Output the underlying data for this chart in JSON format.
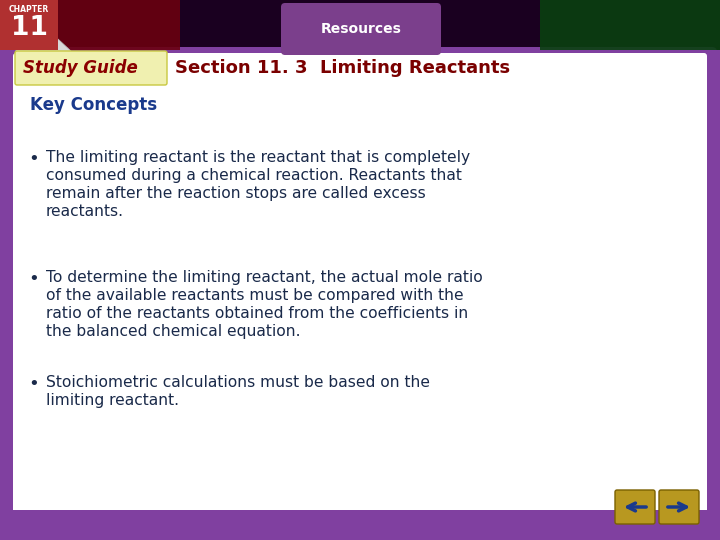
{
  "title": "Section 11. 3  Limiting Reactants",
  "study_guide_label": "Study Guide",
  "resources_label": "Resources",
  "key_concepts_label": "Key Concepts",
  "bullets": [
    "The limiting reactant is the reactant that is completely\nconsumed during a chemical reaction. Reactants that\nremain after the reaction stops are called excess\nreactants.",
    "To determine the limiting reactant, the actual mole ratio\nof the available reactants must be compared with the\nratio of the reactants obtained from the coefficients in\nthe balanced chemical equation.",
    "Stoichiometric calculations must be based on the\nlimiting reactant."
  ],
  "bg_color": "#ffffff",
  "border_color": "#8040a0",
  "study_guide_color": "#8b0000",
  "title_color": "#7a0000",
  "key_concepts_color": "#1a3a8c",
  "bullet_text_color": "#1a2a4a",
  "resources_bg": "#7b3f8c",
  "resources_text_color": "#ffffff",
  "chapter_bg": "#b03030",
  "chapter_text_color": "#ffffff",
  "top_bar_dark": "#1a0020",
  "top_bar_red": "#6a0010",
  "top_bar_green": "#0a4010",
  "nav_arrow_color": "#1a3a8c",
  "nav_bg_color": "#b89820",
  "sg_bg_color": "#f0f0b0",
  "sg_border_color": "#c8c840",
  "fold_color": "#d8d8d8"
}
